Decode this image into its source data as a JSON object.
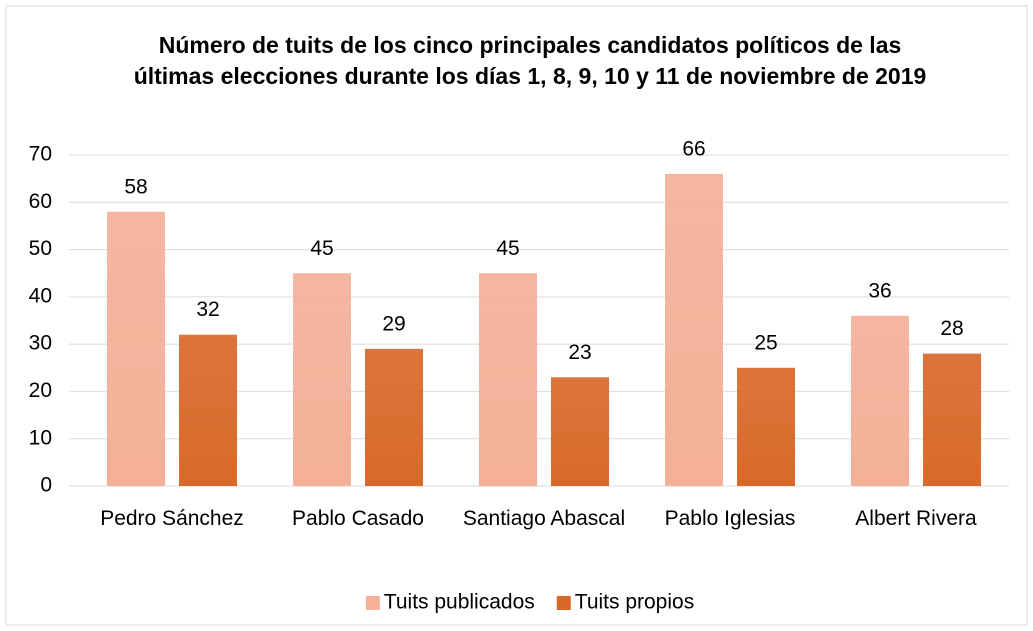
{
  "chart_data": {
    "type": "bar",
    "title": "Número de tuits de los cinco principales candidatos políticos de las últimas elecciones durante los días 1, 8, 9, 10 y 11 de noviembre de 2019",
    "categories": [
      "Pedro Sánchez",
      "Pablo Casado",
      "Santiago Abascal",
      "Pablo Iglesias",
      "Albert Rivera"
    ],
    "series": [
      {
        "name": "Tuits publicados",
        "color": "#f4b098",
        "values": [
          58,
          45,
          45,
          66,
          36
        ]
      },
      {
        "name": "Tuits propios",
        "color": "#d9692a",
        "values": [
          32,
          29,
          23,
          25,
          28
        ]
      }
    ],
    "ylim": [
      0,
      70
    ],
    "yticks": [
      0,
      10,
      20,
      30,
      40,
      50,
      60,
      70
    ],
    "grid": true,
    "legend": "bottom"
  }
}
